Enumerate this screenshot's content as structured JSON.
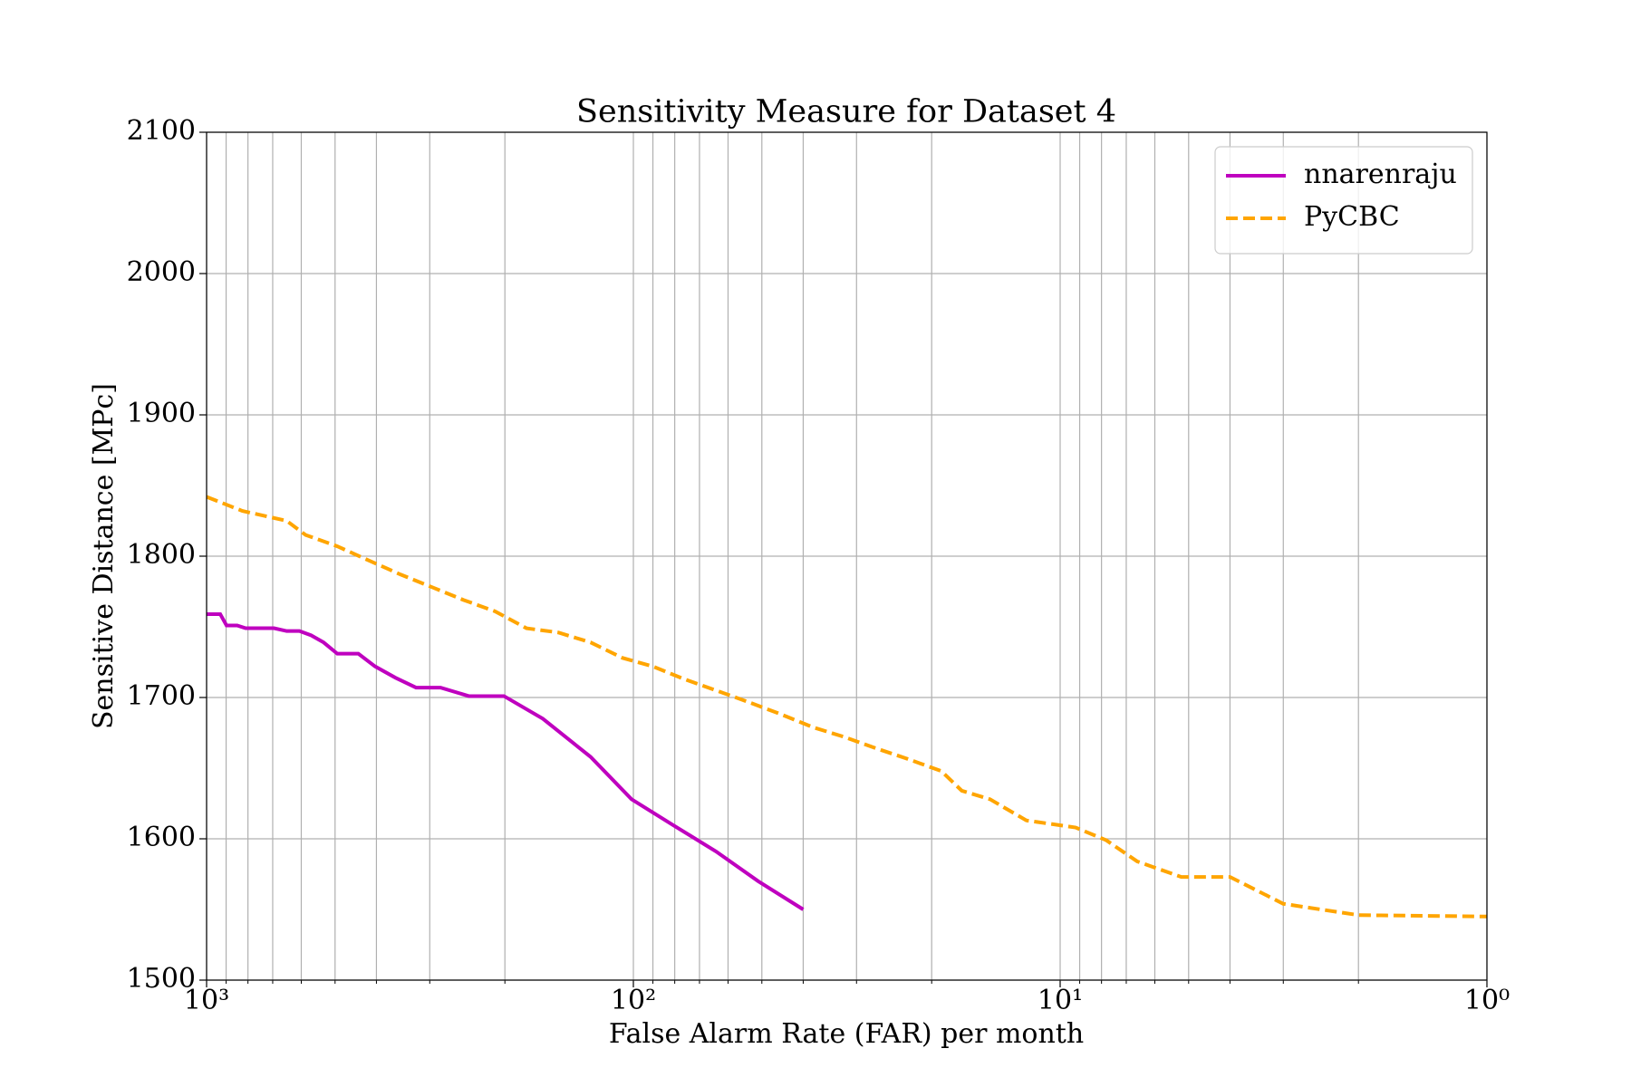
{
  "chart_data": {
    "type": "line",
    "title": "Sensitivity Measure for Dataset 4",
    "x_label": "False Alarm Rate (FAR) per month",
    "y_label": "Sensitive Distance [MPc]",
    "xscale": "log",
    "x_reversed": true,
    "xlim": [
      1000,
      1
    ],
    "ylim": [
      1500,
      2100
    ],
    "xticks": [
      {
        "value": 1000,
        "label": "10³"
      },
      {
        "value": 100,
        "label": "10²"
      },
      {
        "value": 10,
        "label": "10¹"
      },
      {
        "value": 1,
        "label": "10⁰"
      }
    ],
    "xminorticks": [
      900,
      800,
      700,
      600,
      500,
      400,
      300,
      200,
      90,
      80,
      70,
      60,
      50,
      40,
      30,
      20,
      9,
      8,
      7,
      6,
      5,
      4,
      3,
      2
    ],
    "yticks": [
      1500,
      1600,
      1700,
      1800,
      1900,
      2000,
      2100
    ],
    "grid": true,
    "legend_position": "upper right",
    "series": [
      {
        "name": "nnarenraju",
        "color": "#bf00bf",
        "style": "solid",
        "x": [
          1000,
          929,
          898,
          848,
          810,
          695,
          649,
          606,
          569,
          532,
          494,
          441,
          403,
          361,
          323,
          283,
          243,
          201,
          163,
          126,
          101,
          81,
          64,
          51,
          40
        ],
        "values": [
          1759,
          1759,
          1751,
          1751,
          1749,
          1749,
          1747,
          1747,
          1744,
          1739,
          1731,
          1731,
          1722,
          1714,
          1707,
          1707,
          1701,
          1701,
          1685,
          1658,
          1628,
          1610,
          1591,
          1570,
          1550
        ]
      },
      {
        "name": "PyCBC",
        "color": "#ffa500",
        "style": "dashed",
        "x": [
          1000,
          824,
          649,
          586,
          494,
          417,
          351,
          296,
          250,
          211,
          178,
          150,
          126,
          106,
          90,
          76,
          64,
          54,
          45,
          38,
          32,
          27,
          23,
          19,
          17,
          14.6,
          12,
          9.2,
          7.8,
          6.6,
          5.2,
          4.0,
          3.0,
          2.0,
          1
        ],
        "values": [
          1842,
          1832,
          1825,
          1815,
          1807,
          1797,
          1787,
          1778,
          1769,
          1761,
          1749,
          1746,
          1739,
          1728,
          1722,
          1713,
          1705,
          1697,
          1688,
          1679,
          1672,
          1664,
          1657,
          1648,
          1634,
          1628,
          1613,
          1608,
          1599,
          1584,
          1573,
          1573,
          1554,
          1546,
          1545
        ]
      }
    ]
  }
}
